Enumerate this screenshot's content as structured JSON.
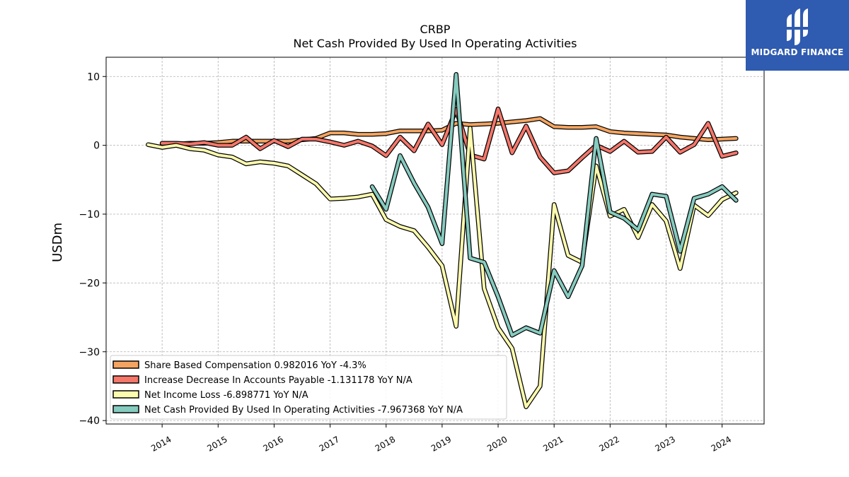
{
  "brand": {
    "name": "MIDGARD FINANCE",
    "background": "#2f5bb0"
  },
  "chart_data": {
    "type": "line",
    "title": "CRBP",
    "subtitle": "Net Cash Provided By Used In Operating Activities",
    "xlabel": "",
    "ylabel": "USDm",
    "ylim": [
      -40.5,
      12.8
    ],
    "yticks": [
      10,
      0,
      -10,
      -20,
      -30,
      -40
    ],
    "ytick_labels": [
      "10",
      "0",
      "−10",
      "−20",
      "−30",
      "−40"
    ],
    "xlim": [
      2013.0,
      2024.75
    ],
    "xticks": [
      2014,
      2015,
      2016,
      2017,
      2018,
      2019,
      2020,
      2021,
      2022,
      2023,
      2024
    ],
    "xtick_labels": [
      "2014",
      "2015",
      "2016",
      "2017",
      "2018",
      "2019",
      "2020",
      "2021",
      "2022",
      "2023",
      "2024"
    ],
    "grid": true,
    "legend_position": "lower-left",
    "series": [
      {
        "name": "Share Based Compensation",
        "legend_label": "Share Based Compensation  0.982016 YoY -4.3%",
        "color": "#f4a460",
        "points": [
          [
            2014.0,
            0.2
          ],
          [
            2014.25,
            0.2
          ],
          [
            2014.5,
            0.3
          ],
          [
            2014.75,
            0.3
          ],
          [
            2015.0,
            0.4
          ],
          [
            2015.25,
            0.6
          ],
          [
            2015.5,
            0.6
          ],
          [
            2015.75,
            0.6
          ],
          [
            2016.0,
            0.6
          ],
          [
            2016.25,
            0.6
          ],
          [
            2016.5,
            0.8
          ],
          [
            2016.75,
            1.0
          ],
          [
            2017.0,
            1.8
          ],
          [
            2017.25,
            1.8
          ],
          [
            2017.5,
            1.6
          ],
          [
            2017.75,
            1.6
          ],
          [
            2018.0,
            1.7
          ],
          [
            2018.25,
            2.1
          ],
          [
            2018.5,
            2.1
          ],
          [
            2018.75,
            2.1
          ],
          [
            2019.0,
            2.2
          ],
          [
            2019.25,
            3.2
          ],
          [
            2019.5,
            3.0
          ],
          [
            2019.75,
            3.1
          ],
          [
            2020.0,
            3.2
          ],
          [
            2020.25,
            3.4
          ],
          [
            2020.5,
            3.6
          ],
          [
            2020.75,
            3.9
          ],
          [
            2021.0,
            2.7
          ],
          [
            2021.25,
            2.6
          ],
          [
            2021.5,
            2.6
          ],
          [
            2021.75,
            2.7
          ],
          [
            2022.0,
            2.0
          ],
          [
            2022.25,
            1.8
          ],
          [
            2022.5,
            1.7
          ],
          [
            2022.75,
            1.6
          ],
          [
            2023.0,
            1.5
          ],
          [
            2023.25,
            1.2
          ],
          [
            2023.5,
            1.0
          ],
          [
            2023.75,
            0.8
          ],
          [
            2024.0,
            0.9
          ],
          [
            2024.25,
            1.0
          ]
        ]
      },
      {
        "name": "Increase Decrease In Accounts Payable",
        "legend_label": "Increase Decrease In Accounts Payable  -1.131178 YoY N/A",
        "color": "#f4776a",
        "points": [
          [
            2014.0,
            0.3
          ],
          [
            2014.25,
            0.3
          ],
          [
            2014.5,
            0.2
          ],
          [
            2014.75,
            0.4
          ],
          [
            2015.0,
            0.0
          ],
          [
            2015.25,
            0.0
          ],
          [
            2015.5,
            1.2
          ],
          [
            2015.75,
            -0.5
          ],
          [
            2016.0,
            0.7
          ],
          [
            2016.25,
            -0.2
          ],
          [
            2016.5,
            0.9
          ],
          [
            2016.75,
            0.9
          ],
          [
            2017.0,
            0.5
          ],
          [
            2017.25,
            0.0
          ],
          [
            2017.5,
            0.6
          ],
          [
            2017.75,
            -0.1
          ],
          [
            2018.0,
            -1.5
          ],
          [
            2018.25,
            1.2
          ],
          [
            2018.5,
            -0.8
          ],
          [
            2018.75,
            3.1
          ],
          [
            2019.0,
            0.1
          ],
          [
            2019.25,
            5.2
          ],
          [
            2019.5,
            -1.4
          ],
          [
            2019.75,
            -2.0
          ],
          [
            2020.0,
            5.3
          ],
          [
            2020.25,
            -1.1
          ],
          [
            2020.5,
            2.8
          ],
          [
            2020.75,
            -1.7
          ],
          [
            2021.0,
            -4.0
          ],
          [
            2021.25,
            -3.7
          ],
          [
            2021.5,
            -1.8
          ],
          [
            2021.75,
            0.0
          ],
          [
            2022.0,
            -0.9
          ],
          [
            2022.25,
            0.6
          ],
          [
            2022.5,
            -1.0
          ],
          [
            2022.75,
            -0.9
          ],
          [
            2023.0,
            1.2
          ],
          [
            2023.25,
            -1.0
          ],
          [
            2023.5,
            0.1
          ],
          [
            2023.75,
            3.2
          ],
          [
            2024.0,
            -1.6
          ],
          [
            2024.25,
            -1.1
          ]
        ]
      },
      {
        "name": "Net Income Loss",
        "legend_label": "Net Income Loss  -6.898771 YoY N/A",
        "color": "#fdfbae",
        "points": [
          [
            2013.75,
            0.1
          ],
          [
            2014.0,
            -0.3
          ],
          [
            2014.25,
            0.0
          ],
          [
            2014.5,
            -0.5
          ],
          [
            2014.75,
            -0.7
          ],
          [
            2015.0,
            -1.4
          ],
          [
            2015.25,
            -1.7
          ],
          [
            2015.5,
            -2.7
          ],
          [
            2015.75,
            -2.4
          ],
          [
            2016.0,
            -2.6
          ],
          [
            2016.25,
            -3.0
          ],
          [
            2016.5,
            -4.3
          ],
          [
            2016.75,
            -5.6
          ],
          [
            2017.0,
            -7.8
          ],
          [
            2017.25,
            -7.7
          ],
          [
            2017.5,
            -7.5
          ],
          [
            2017.75,
            -7.1
          ],
          [
            2018.0,
            -10.8
          ],
          [
            2018.25,
            -11.8
          ],
          [
            2018.5,
            -12.4
          ],
          [
            2018.75,
            -14.8
          ],
          [
            2019.0,
            -17.5
          ],
          [
            2019.25,
            -26.3
          ],
          [
            2019.5,
            2.5
          ],
          [
            2019.75,
            -20.8
          ],
          [
            2020.0,
            -26.5
          ],
          [
            2020.25,
            -29.5
          ],
          [
            2020.5,
            -38.0
          ],
          [
            2020.75,
            -35.0
          ],
          [
            2021.0,
            -8.6
          ],
          [
            2021.25,
            -16.0
          ],
          [
            2021.5,
            -17.0
          ],
          [
            2021.75,
            -3.0
          ],
          [
            2022.0,
            -10.3
          ],
          [
            2022.25,
            -9.3
          ],
          [
            2022.5,
            -13.4
          ],
          [
            2022.75,
            -8.6
          ],
          [
            2023.0,
            -11.0
          ],
          [
            2023.25,
            -17.9
          ],
          [
            2023.5,
            -8.7
          ],
          [
            2023.75,
            -10.2
          ],
          [
            2024.0,
            -7.9
          ],
          [
            2024.25,
            -6.9
          ]
        ]
      },
      {
        "name": "Net Cash Provided By Used In Operating Activities",
        "legend_label": "Net Cash Provided By Used In Operating Activities  -7.967368 YoY N/A",
        "color": "#86cbbf",
        "points": [
          [
            2017.75,
            -6.0
          ],
          [
            2018.0,
            -9.3
          ],
          [
            2018.25,
            -1.5
          ],
          [
            2018.5,
            -5.5
          ],
          [
            2018.75,
            -9.0
          ],
          [
            2019.0,
            -14.3
          ],
          [
            2019.25,
            10.3
          ],
          [
            2019.5,
            -16.4
          ],
          [
            2019.75,
            -17.0
          ],
          [
            2020.0,
            -22.0
          ],
          [
            2020.25,
            -27.6
          ],
          [
            2020.5,
            -26.5
          ],
          [
            2020.75,
            -27.3
          ],
          [
            2021.0,
            -18.2
          ],
          [
            2021.25,
            -22.0
          ],
          [
            2021.5,
            -17.5
          ],
          [
            2021.75,
            1.0
          ],
          [
            2022.0,
            -9.7
          ],
          [
            2022.25,
            -10.6
          ],
          [
            2022.5,
            -12.3
          ],
          [
            2022.75,
            -7.1
          ],
          [
            2023.0,
            -7.4
          ],
          [
            2023.25,
            -15.4
          ],
          [
            2023.5,
            -7.7
          ],
          [
            2023.75,
            -7.1
          ],
          [
            2024.0,
            -6.0
          ],
          [
            2024.25,
            -8.0
          ]
        ]
      }
    ]
  }
}
